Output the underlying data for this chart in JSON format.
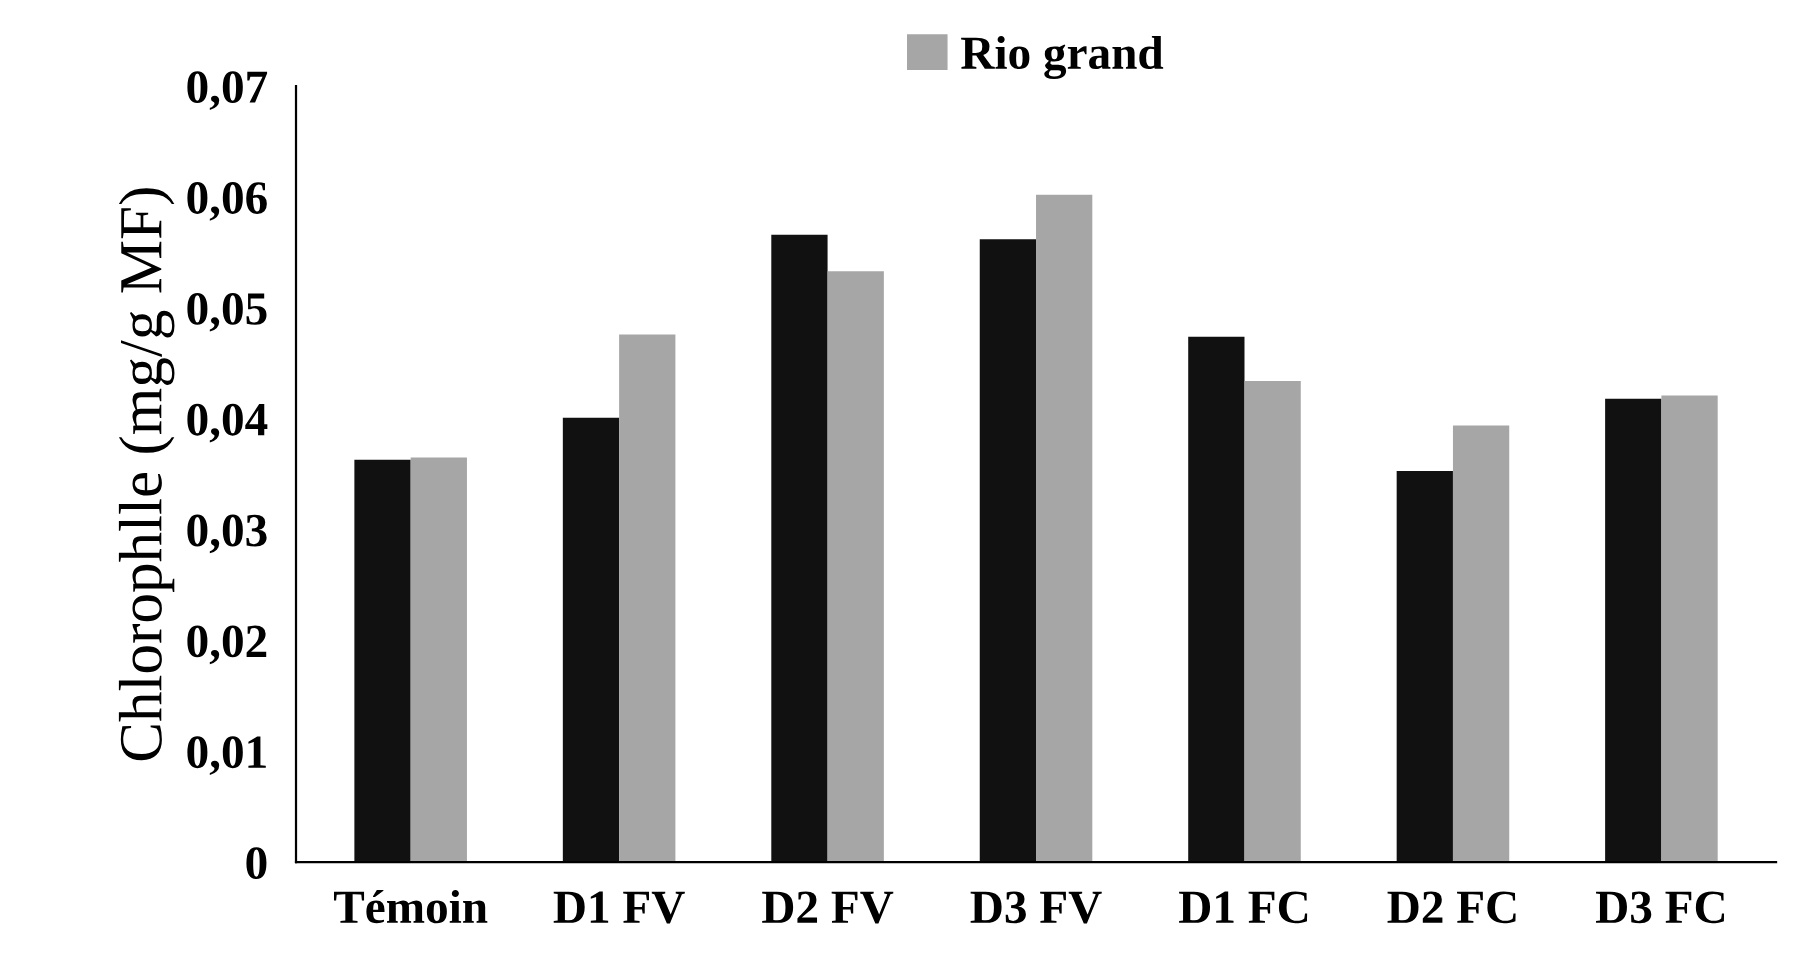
{
  "chart_data": {
    "type": "bar",
    "ylabel": "Chlorophlle (mg/g MF)",
    "categories": [
      "Témoin",
      "D1 FV",
      "D2 FV",
      "D3 FV",
      "D1 FC",
      "D2 FC",
      "D3 FC"
    ],
    "series": [
      {
        "color": "#111111",
        "values": [
          0.0363,
          0.0401,
          0.0566,
          0.0562,
          0.0474,
          0.0353,
          0.0418
        ]
      },
      {
        "name": "Rio grand",
        "color": "#a6a6a6",
        "values": [
          0.0365,
          0.0476,
          0.0533,
          0.0602,
          0.0434,
          0.0394,
          0.0421
        ]
      }
    ],
    "ylim": [
      0,
      0.07
    ],
    "yticks": [
      {
        "value": 0,
        "label": "0"
      },
      {
        "value": 0.01,
        "label": "0,01"
      },
      {
        "value": 0.02,
        "label": "0,02"
      },
      {
        "value": 0.03,
        "label": "0,03"
      },
      {
        "value": 0.04,
        "label": "0,04"
      },
      {
        "value": 0.05,
        "label": "0,05"
      },
      {
        "value": 0.06,
        "label": "0,06"
      },
      {
        "value": 0.07,
        "label": "0,07"
      }
    ],
    "grid": false,
    "legend": "top"
  }
}
